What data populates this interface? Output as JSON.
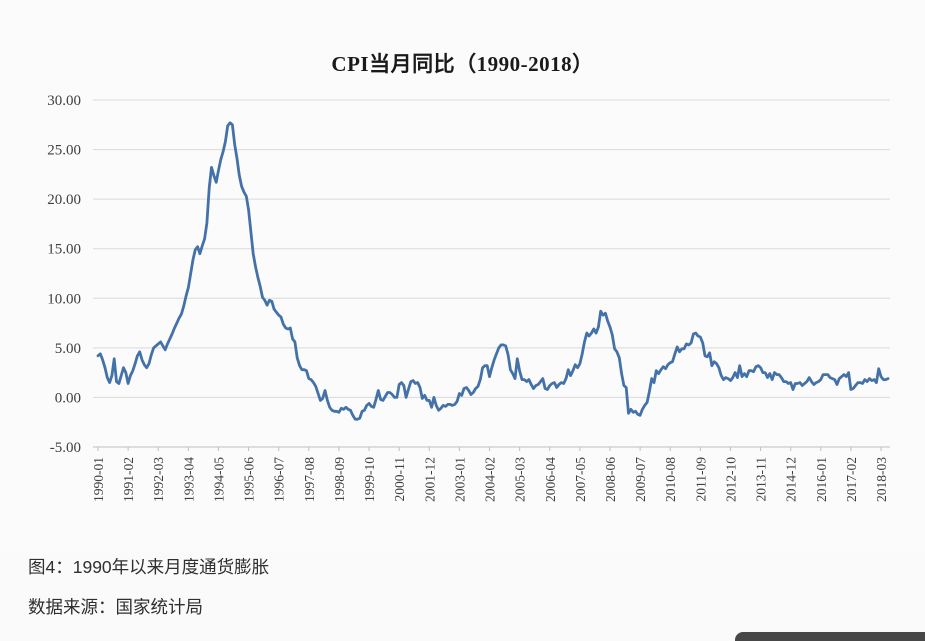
{
  "chart": {
    "title": "CPI当月同比（1990-2018）",
    "line_color": "#4472a8",
    "grid_color": "#d9d9d9",
    "axis_line_color": "#bfbfbf",
    "axis_text_color": "#404040"
  },
  "caption": {
    "line1": "图4：1990年以来月度通货膨胀",
    "line2": "数据来源：国家统计局"
  },
  "chart_data": {
    "type": "line",
    "title": "CPI当月同比（1990-2018）",
    "xlabel": "",
    "ylabel": "",
    "ylim": [
      -5,
      30
    ],
    "y_tick_step": 5,
    "y_tick_labels": [
      "30.00",
      "25.00",
      "20.00",
      "15.00",
      "10.00",
      "5.00",
      "0.00",
      "-5.00"
    ],
    "frequency": "monthly",
    "x_start": "1990-01",
    "x_end": "2018-06",
    "x_tick_every_n_months": 13,
    "x_tick_labels": [
      "1990-01",
      "1991-02",
      "1992-03",
      "1993-04",
      "1994-05",
      "1995-06",
      "1996-07",
      "1997-08",
      "1998-09",
      "1999-10",
      "2000-11",
      "2001-12",
      "2003-01",
      "2004-02",
      "2005-03",
      "2006-04",
      "2007-05",
      "2008-06",
      "2009-07",
      "2010-08",
      "2011-09",
      "2012-10",
      "2013-11",
      "2014-12",
      "2016-01",
      "2017-02",
      "2018-03"
    ],
    "grid": true,
    "legend": "none",
    "series": [
      {
        "name": "CPI当月同比",
        "values": [
          4.2,
          4.4,
          3.8,
          3.0,
          2.0,
          1.5,
          2.2,
          3.9,
          1.6,
          1.4,
          2.2,
          3.0,
          2.5,
          1.4,
          2.2,
          2.7,
          3.4,
          4.2,
          4.6,
          3.8,
          3.3,
          3.0,
          3.4,
          4.3,
          5.0,
          5.2,
          5.4,
          5.6,
          5.2,
          4.8,
          5.4,
          5.9,
          6.4,
          7.0,
          7.5,
          8.0,
          8.4,
          9.2,
          10.2,
          11.1,
          12.5,
          13.9,
          14.9,
          15.2,
          14.5,
          15.3,
          16.0,
          17.6,
          21.1,
          23.2,
          22.4,
          21.7,
          22.9,
          24.0,
          24.8,
          25.8,
          27.4,
          27.7,
          27.5,
          25.5,
          24.1,
          22.4,
          21.3,
          20.7,
          20.3,
          18.9,
          16.7,
          14.5,
          13.2,
          12.1,
          11.2,
          10.1,
          9.8,
          9.3,
          9.8,
          9.7,
          8.9,
          8.6,
          8.3,
          8.1,
          7.4,
          7.0,
          6.9,
          7.0,
          5.9,
          5.6,
          4.0,
          3.2,
          2.8,
          2.8,
          2.7,
          1.9,
          1.8,
          1.5,
          1.1,
          0.4,
          -0.3,
          -0.1,
          0.7,
          -0.3,
          -1.0,
          -1.3,
          -1.4,
          -1.4,
          -1.5,
          -1.1,
          -1.2,
          -1.0,
          -1.2,
          -1.3,
          -1.8,
          -2.2,
          -2.2,
          -2.1,
          -1.4,
          -1.3,
          -0.8,
          -0.6,
          -0.9,
          -1.0,
          -0.2,
          0.7,
          -0.2,
          -0.3,
          0.1,
          0.5,
          0.5,
          0.3,
          0.0,
          0.0,
          1.3,
          1.5,
          1.2,
          0.0,
          0.8,
          1.6,
          1.7,
          1.4,
          1.5,
          1.0,
          -0.1,
          0.2,
          -0.3,
          -0.3,
          -1.0,
          0.0,
          -0.8,
          -1.3,
          -1.1,
          -0.8,
          -0.9,
          -0.7,
          -0.7,
          -0.8,
          -0.7,
          -0.4,
          0.4,
          0.2,
          0.9,
          1.0,
          0.7,
          0.3,
          0.5,
          0.9,
          1.1,
          1.8,
          3.0,
          3.2,
          3.2,
          2.1,
          3.0,
          3.8,
          4.4,
          5.0,
          5.3,
          5.3,
          5.2,
          4.3,
          2.8,
          2.4,
          1.9,
          3.9,
          2.7,
          1.8,
          1.8,
          1.6,
          1.8,
          1.3,
          0.9,
          1.2,
          1.3,
          1.6,
          1.9,
          0.9,
          0.8,
          1.2,
          1.4,
          1.5,
          1.0,
          1.3,
          1.5,
          1.4,
          1.9,
          2.8,
          2.2,
          2.7,
          3.3,
          3.0,
          3.4,
          4.4,
          5.6,
          6.5,
          6.2,
          6.5,
          6.9,
          6.5,
          7.1,
          8.7,
          8.3,
          8.5,
          7.7,
          7.1,
          6.3,
          4.9,
          4.6,
          4.0,
          2.4,
          1.2,
          1.0,
          -1.6,
          -1.2,
          -1.5,
          -1.4,
          -1.7,
          -1.8,
          -1.2,
          -0.8,
          -0.5,
          0.6,
          1.9,
          1.5,
          2.7,
          2.4,
          2.8,
          3.1,
          2.9,
          3.3,
          3.5,
          3.6,
          4.4,
          5.1,
          4.6,
          4.9,
          4.9,
          5.4,
          5.3,
          5.5,
          6.4,
          6.5,
          6.2,
          6.1,
          5.5,
          4.2,
          4.1,
          4.5,
          3.2,
          3.6,
          3.4,
          3.0,
          2.2,
          1.8,
          2.0,
          1.9,
          1.7,
          2.0,
          2.5,
          2.0,
          3.2,
          2.1,
          2.4,
          2.1,
          2.7,
          2.7,
          2.6,
          3.1,
          3.2,
          3.0,
          2.5,
          2.5,
          2.0,
          2.4,
          1.8,
          2.5,
          2.3,
          2.3,
          2.0,
          1.6,
          1.6,
          1.4,
          1.5,
          0.8,
          1.4,
          1.4,
          1.5,
          1.2,
          1.4,
          1.6,
          2.0,
          1.6,
          1.3,
          1.5,
          1.6,
          1.8,
          2.3,
          2.3,
          2.3,
          2.0,
          1.9,
          1.8,
          1.3,
          1.9,
          2.1,
          2.3,
          2.1,
          2.5,
          0.8,
          0.9,
          1.2,
          1.5,
          1.5,
          1.4,
          1.8,
          1.6,
          1.9,
          1.7,
          1.8,
          1.5,
          2.9,
          2.1,
          1.8,
          1.8,
          1.9
        ]
      }
    ]
  }
}
